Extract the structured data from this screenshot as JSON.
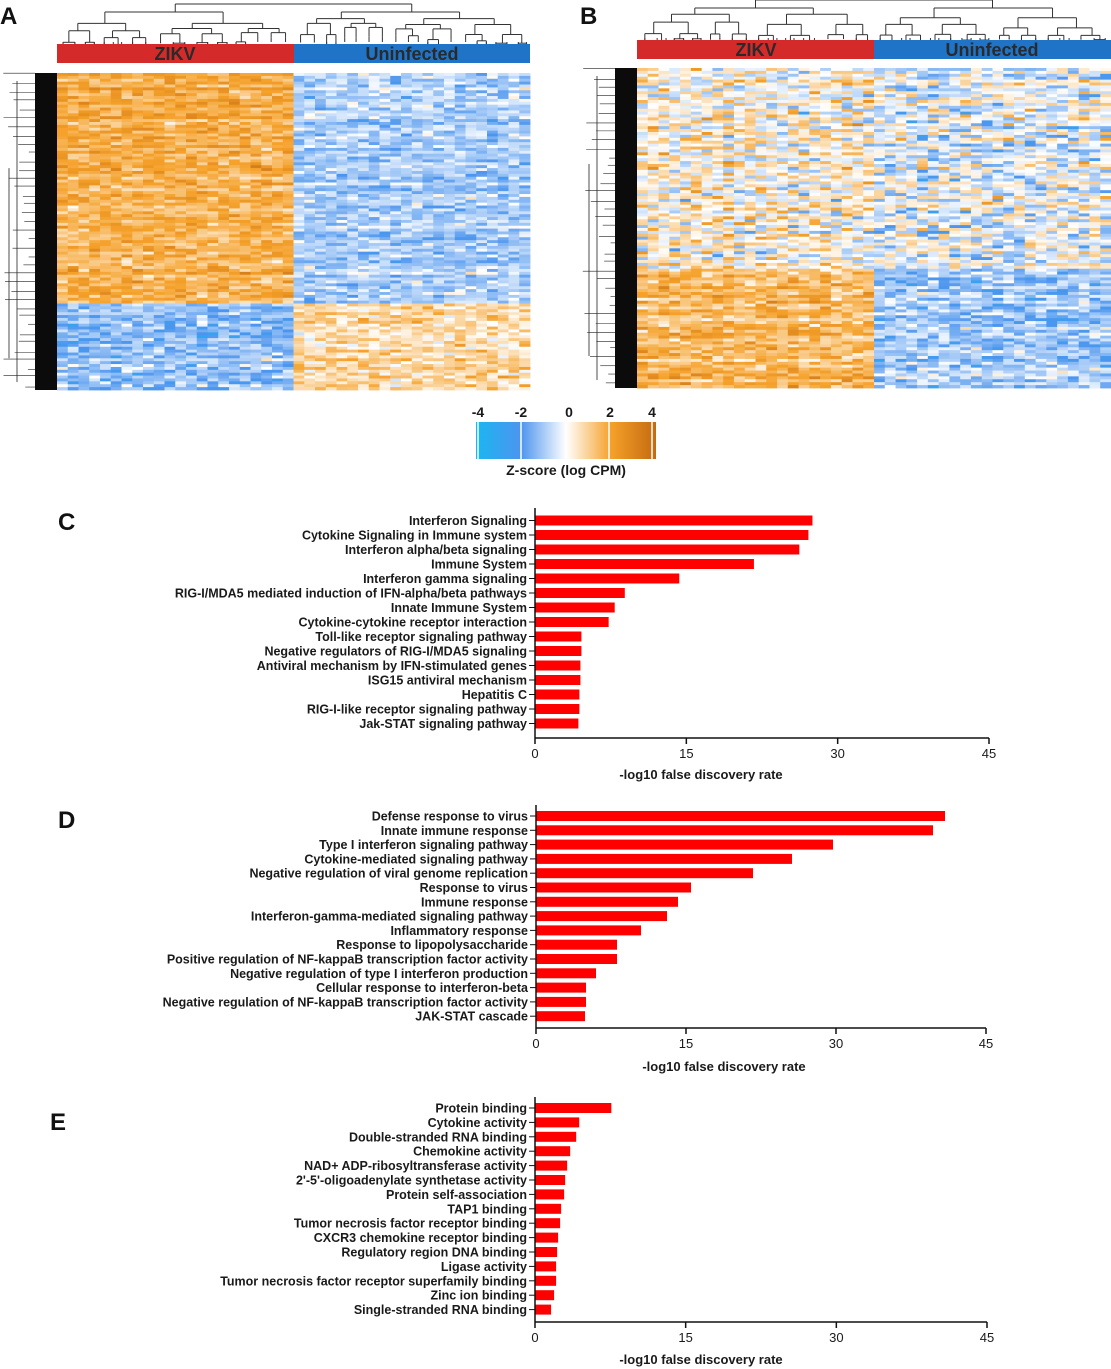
{
  "panels": {
    "A": "A",
    "B": "B",
    "C": "C",
    "D": "D",
    "E": "E"
  },
  "colors": {
    "zikv": "#d42a2a",
    "uninfected": "#1f74c8",
    "bar": "#ff0000",
    "axis": "#111111"
  },
  "heatmaps": [
    {
      "panel": "A",
      "groups": [
        {
          "label": "ZIKV",
          "color": "#d42a2a"
        },
        {
          "label": "Uninfected",
          "color": "#1f74c8"
        }
      ]
    },
    {
      "panel": "B",
      "groups": [
        {
          "label": "ZIKV",
          "color": "#d42a2a"
        },
        {
          "label": "Uninfected",
          "color": "#1f74c8"
        }
      ]
    }
  ],
  "colorbar": {
    "ticks": [
      "-4",
      "-2",
      "0",
      "2",
      "4"
    ],
    "title": "Z-score (log CPM)",
    "stops": [
      "#1ab6f2",
      "#4c95ee",
      "#ffffff",
      "#f5a12a",
      "#c46a10"
    ]
  },
  "chart_data": [
    {
      "panel": "C",
      "type": "bar",
      "orientation": "horizontal",
      "categories": [
        "Interferon Signaling",
        "Cytokine Signaling in Immune system",
        "Interferon alpha/beta signaling",
        "Immune System",
        "Interferon gamma signaling",
        "RIG-I/MDA5 mediated induction of IFN-alpha/beta pathways",
        "Innate Immune System",
        "Cytokine-cytokine receptor interaction",
        "Toll-like receptor signaling pathway",
        "Negative regulators of RIG-I/MDA5 signaling",
        "Antiviral mechanism by IFN-stimulated genes",
        "ISG15 antiviral mechanism",
        "Hepatitis C",
        "RIG-I-like receptor signaling pathway",
        "Jak-STAT signaling pathway"
      ],
      "values": [
        27.5,
        27.1,
        26.2,
        21.7,
        14.3,
        8.9,
        7.9,
        7.3,
        4.6,
        4.6,
        4.5,
        4.5,
        4.4,
        4.4,
        4.3
      ],
      "xlabel": "-log10 false discovery rate",
      "xlim": [
        0,
        45
      ],
      "xticks": [
        "0",
        "15",
        "30",
        "45"
      ]
    },
    {
      "panel": "D",
      "type": "bar",
      "orientation": "horizontal",
      "categories": [
        "Defense response to virus",
        "Innate immune response",
        "Type I interferon signaling pathway",
        "Cytokine-mediated signaling pathway",
        "Negative regulation of viral genome replication",
        "Response to virus",
        "Immune response",
        "Interferon-gamma-mediated signaling pathway",
        "Inflammatory response",
        "Response to lipopolysaccharide",
        "Positive regulation of NF-kappaB transcription factor activity",
        "Negative regulation of type I interferon production",
        "Cellular response to interferon-beta",
        "Negative regulation of NF-kappaB transcription factor activity",
        "JAK-STAT cascade"
      ],
      "values": [
        40.9,
        39.7,
        29.7,
        25.6,
        21.7,
        15.5,
        14.2,
        13.1,
        10.5,
        8.1,
        8.1,
        6.0,
        5.0,
        5.0,
        4.9
      ],
      "xlabel": "-log10 false discovery rate",
      "xlim": [
        0,
        45
      ],
      "xticks": [
        "0",
        "15",
        "30",
        "45"
      ]
    },
    {
      "panel": "E",
      "type": "bar",
      "orientation": "horizontal",
      "categories": [
        "Protein binding",
        "Cytokine activity",
        "Double-stranded RNA binding",
        "Chemokine activity",
        "NAD+ ADP-ribosyltransferase activity",
        "2'-5'-oligoadenylate synthetase activity",
        "Protein self-association",
        "TAP1 binding",
        "Tumor necrosis factor receptor binding",
        "CXCR3 chemokine receptor binding",
        "Regulatory region DNA binding",
        "Ligase activity",
        "Tumor necrosis factor receptor superfamily binding",
        "Zinc ion binding",
        "Single-stranded RNA binding"
      ],
      "values": [
        7.6,
        4.4,
        4.1,
        3.5,
        3.2,
        3.0,
        2.9,
        2.6,
        2.5,
        2.3,
        2.2,
        2.1,
        2.1,
        1.9,
        1.6
      ],
      "xlabel": "-log10 false discovery rate",
      "xlim": [
        0,
        45
      ],
      "xticks": [
        "0",
        "15",
        "30",
        "45"
      ]
    }
  ]
}
